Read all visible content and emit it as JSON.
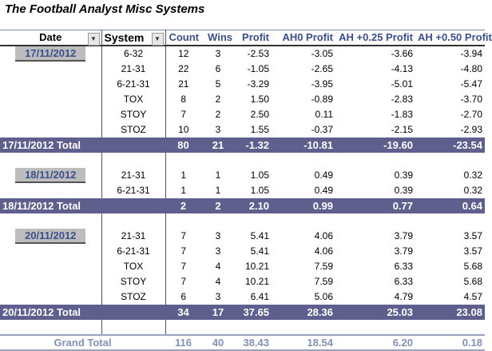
{
  "title": "The Football Analyst Misc Systems",
  "headers": {
    "date": "Date",
    "system": "System",
    "count": "Count",
    "wins": "Wins",
    "profit": "Profit",
    "ah0": "AH0 Profit",
    "ah25": "AH +0.25 Profit",
    "ah50": "AH +0.50 Profit"
  },
  "groups": [
    {
      "date": "17/11/2012",
      "rows": [
        {
          "system": "6-32",
          "count": "12",
          "wins": "3",
          "profit": "-2.53",
          "ah0": "-3.05",
          "ah25": "-3.66",
          "ah50": "-3.94"
        },
        {
          "system": "21-31",
          "count": "22",
          "wins": "6",
          "profit": "-1.05",
          "ah0": "-2.65",
          "ah25": "-4.13",
          "ah50": "-4.80"
        },
        {
          "system": "6-21-31",
          "count": "21",
          "wins": "5",
          "profit": "-3.29",
          "ah0": "-3.95",
          "ah25": "-5.01",
          "ah50": "-5.47"
        },
        {
          "system": "TOX",
          "count": "8",
          "wins": "2",
          "profit": "1.50",
          "ah0": "-0.89",
          "ah25": "-2.83",
          "ah50": "-3.70"
        },
        {
          "system": "STOY",
          "count": "7",
          "wins": "2",
          "profit": "2.50",
          "ah0": "0.11",
          "ah25": "-1.83",
          "ah50": "-2.70"
        },
        {
          "system": "STOZ",
          "count": "10",
          "wins": "3",
          "profit": "1.55",
          "ah0": "-0.37",
          "ah25": "-2.15",
          "ah50": "-2.93"
        }
      ],
      "total": {
        "label": "17/11/2012 Total",
        "count": "80",
        "wins": "21",
        "profit": "-1.32",
        "ah0": "-10.81",
        "ah25": "-19.60",
        "ah50": "-23.54"
      }
    },
    {
      "date": "18/11/2012",
      "rows": [
        {
          "system": "21-31",
          "count": "1",
          "wins": "1",
          "profit": "1.05",
          "ah0": "0.49",
          "ah25": "0.39",
          "ah50": "0.32"
        },
        {
          "system": "6-21-31",
          "count": "1",
          "wins": "1",
          "profit": "1.05",
          "ah0": "0.49",
          "ah25": "0.39",
          "ah50": "0.32"
        }
      ],
      "total": {
        "label": "18/11/2012 Total",
        "count": "2",
        "wins": "2",
        "profit": "2.10",
        "ah0": "0.99",
        "ah25": "0.77",
        "ah50": "0.64"
      }
    },
    {
      "date": "20/11/2012",
      "rows": [
        {
          "system": "21-31",
          "count": "7",
          "wins": "3",
          "profit": "5.41",
          "ah0": "4.06",
          "ah25": "3.79",
          "ah50": "3.57"
        },
        {
          "system": "6-21-31",
          "count": "7",
          "wins": "3",
          "profit": "5.41",
          "ah0": "4.06",
          "ah25": "3.79",
          "ah50": "3.57"
        },
        {
          "system": "TOX",
          "count": "7",
          "wins": "4",
          "profit": "10.21",
          "ah0": "7.59",
          "ah25": "6.33",
          "ah50": "5.68"
        },
        {
          "system": "STOY",
          "count": "7",
          "wins": "4",
          "profit": "10.21",
          "ah0": "7.59",
          "ah25": "6.33",
          "ah50": "5.68"
        },
        {
          "system": "STOZ",
          "count": "6",
          "wins": "3",
          "profit": "6.41",
          "ah0": "5.06",
          "ah25": "4.79",
          "ah50": "4.57"
        }
      ],
      "total": {
        "label": "20/11/2012 Total",
        "count": "34",
        "wins": "17",
        "profit": "37.65",
        "ah0": "28.36",
        "ah25": "25.03",
        "ah50": "23.08"
      }
    }
  ],
  "grand_total": {
    "label": "Grand Total",
    "count": "116",
    "wins": "40",
    "profit": "38.43",
    "ah0": "18.54",
    "ah25": "6.20",
    "ah50": "0.18"
  },
  "icons": {
    "date_filter": "filter-dropdown-icon",
    "system_filter": "chevron-down-icon"
  }
}
